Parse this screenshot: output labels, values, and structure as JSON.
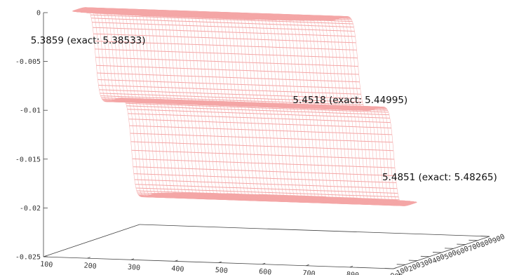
{
  "chart_data": {
    "type": "surface-3d",
    "title": "",
    "xlabel": "",
    "ylabel": "",
    "zlabel": "",
    "x_ticks": [
      "100",
      "200",
      "300",
      "400",
      "500",
      "600",
      "700",
      "800",
      "900"
    ],
    "y_ticks": [
      "100",
      "200",
      "300",
      "400",
      "500",
      "600",
      "700",
      "800",
      "900"
    ],
    "z_ticks": [
      "0",
      "-0.005",
      "-0.01",
      "-0.015",
      "-0.02",
      "-0.025"
    ],
    "xlim": [
      100,
      900
    ],
    "ylim": [
      100,
      900
    ],
    "zlim": [
      -0.025,
      0
    ],
    "surface_color": "#f4a6a6",
    "plateaus": [
      {
        "y_range": [
          100,
          300
        ],
        "z": 0.0
      },
      {
        "y_range": [
          400,
          600
        ],
        "z": -0.0105
      },
      {
        "y_range": [
          700,
          900
        ],
        "z": -0.0215
      }
    ],
    "annotations": [
      {
        "text": "5.3859 (exact: 5.38533)"
      },
      {
        "text": "5.4518 (exact: 5.44995)"
      },
      {
        "text": "5.4851 (exact: 5.48265)"
      }
    ]
  }
}
